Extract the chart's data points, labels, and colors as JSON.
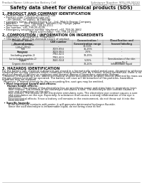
{
  "bg_color": "#ffffff",
  "header_left": "Product Name: Lithium Ion Battery Cell",
  "header_right_line1": "Substance Number: SDS-LIB-00010",
  "header_right_line2": "Established / Revision: Dec.7.2010",
  "title": "Safety data sheet for chemical products (SDS)",
  "section1_title": "1. PRODUCT AND COMPANY IDENTIFICATION",
  "section1_lines": [
    "  • Product name: Lithium Ion Battery Cell",
    "  • Product code: Cylindrical-type cell",
    "       (IH 18650L, IH 18650J, IH 18650A)",
    "  • Company name:   Sanyo Electric Co., Ltd., Mobile Energy Company",
    "  • Address:         2001 Kamiosaki, Sumoto-City, Hyogo, Japan",
    "  • Telephone number: +81-799-26-4111",
    "  • Fax number: +81-799-26-4128",
    "  • Emergency telephone number (daytime): +81-799-26-3662",
    "                                  (Night and holiday): +81-799-26-4101"
  ],
  "section2_title": "2. COMPOSITION / INFORMATION ON INGREDIENTS",
  "section2_intro": "  • Substance or preparation: Preparation",
  "section2_sub": "  • Information about the chemical nature of product:",
  "table_col_headers": [
    "Chemical name /\nSeveral name",
    "CAS number",
    "Concentration /\nConcentration range",
    "Classification and\nhazard labeling"
  ],
  "table_rows": [
    [
      "Lithium cobalt oxide\n(LiMnCo)PO4)",
      "-",
      "30-50%",
      "-"
    ],
    [
      "Iron",
      "7439-89-6",
      "15-25%",
      "-"
    ],
    [
      "Aluminum",
      "7429-90-5",
      "2-5%",
      "-"
    ],
    [
      "Graphite\n(including graphite-1)\n(or including graphite-2)",
      "7782-42-5\n7782-42-5",
      "10-25%",
      "-"
    ],
    [
      "Copper",
      "7440-50-8",
      "5-15%",
      "Sensitization of the skin\ngroup No.2"
    ],
    [
      "Organic electrolyte",
      "-",
      "10-20%",
      "Inflammable liquid"
    ]
  ],
  "section3_title": "3. HAZARDS IDENTIFICATION",
  "section3_lines": [
    "For the battery cell, chemical substances are stored in a hermetically sealed metal case, designed to withstand",
    "temperature cycling, pressure-shock conditions during normal use. As a result, during normal use, there is no",
    "physical danger of ignition or explosion and thermal danger of hazardous materials leakage.",
    "  However, if exposed to a fire, added mechanical shocks, decomposed, ambient electro-chemical by mass use,",
    "the gas release vent will be operated. The battery cell case will be breached of fire-particles, hazardous",
    "materials may be released.",
    "  Moreover, if heated strongly by the surrounding fire, soot gas may be emitted."
  ],
  "bullet_important": "  • Most important hazard and effects:",
  "human_health": "    Human health effects:",
  "health_lines": [
    "      Inhalation: The release of the electrolyte has an anesthesia action and stimulates in respiratory tract.",
    "      Skin contact: The release of the electrolyte stimulates a skin. The electrolyte skin contact causes a",
    "      sore and stimulation on the skin.",
    "      Eye contact: The release of the electrolyte stimulates eyes. The electrolyte eye contact causes a sore",
    "      and stimulation on the eye. Especially, a substance that causes a strong inflammation of the eye is",
    "      contained.",
    "      Environmental effects: Since a battery cell remains in the environment, do not throw out it into the",
    "      environment."
  ],
  "bullet_specific": "  • Specific hazards:",
  "specific_lines": [
    "      If the electrolyte contacts with water, it will generate detrimental hydrogen fluoride.",
    "      Since the said electrolyte is inflammable liquid, do not bring close to fire."
  ]
}
